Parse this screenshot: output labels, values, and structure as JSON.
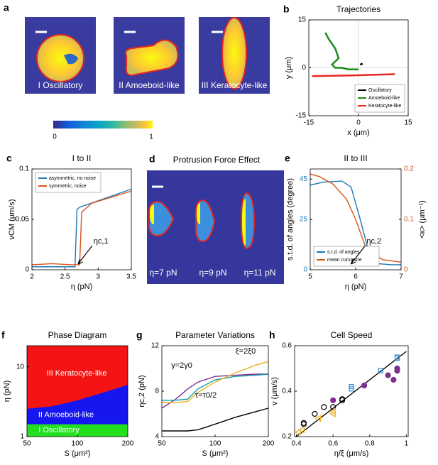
{
  "images": {
    "a": {
      "label": "a",
      "cells": [
        "I Oscillatory",
        "II Amoeboid-like",
        "III Keratocyte-like"
      ],
      "colorbar": [
        0,
        1
      ]
    },
    "d": {
      "label": "d",
      "title": "Protrusion Force Effect",
      "cells": [
        "η=7 pN",
        "η=9 pN",
        "η=11 pN"
      ]
    }
  },
  "chart_data": [
    {
      "label": "b",
      "type": "line",
      "title": "Trajectories",
      "xlabel": "x (μm)",
      "ylabel": "y (μm)",
      "xlim": [
        -15,
        15
      ],
      "ylim": [
        -15,
        15
      ],
      "xticks": [
        -15,
        0,
        15
      ],
      "yticks": [
        -15,
        0,
        15
      ],
      "grid": true,
      "legend": "lower right",
      "series": [
        {
          "name": "Oscillatory",
          "color": "#000000",
          "x": [
            0.5,
            1,
            1.2
          ],
          "values": [
            1,
            1.2,
            1
          ]
        },
        {
          "name": "Amoeboid-like",
          "color": "#1a8a1a",
          "x": [
            -10,
            -9,
            -7,
            -6,
            -8,
            -7,
            -5,
            -3,
            0
          ],
          "values": [
            11,
            9,
            6,
            3,
            1,
            0,
            0,
            -0.5,
            -0.5
          ]
        },
        {
          "name": "Keratocyte-like",
          "color": "#e8251f",
          "x": [
            -14,
            -8,
            -2,
            4,
            11
          ],
          "values": [
            -2.6,
            -2.5,
            -2.4,
            -2.2,
            -2
          ]
        }
      ]
    },
    {
      "label": "c",
      "type": "line",
      "title": "I to II",
      "xlabel": "η (pN)",
      "ylabel": "vCM (μm/s)",
      "xlim": [
        2,
        3.5
      ],
      "ylim": [
        0,
        0.1
      ],
      "xticks": [
        2,
        2.5,
        3,
        3.5
      ],
      "yticks": [
        0,
        0.05,
        0.1
      ],
      "legend": "upper left",
      "annotation": "ηc,1",
      "series": [
        {
          "name": "asymmetric, no noise",
          "color": "#1f77b4",
          "x": [
            2,
            2.5,
            2.65,
            2.68,
            2.72,
            3.5
          ],
          "values": [
            0.003,
            0.003,
            0.003,
            0.06,
            0.062,
            0.08
          ]
        },
        {
          "name": "symmetric, noise",
          "color": "#d95319",
          "x": [
            2,
            2.3,
            2.6,
            2.72,
            2.75,
            2.9,
            3.0,
            3.5
          ],
          "values": [
            0.005,
            0.006,
            0.005,
            0.005,
            0.057,
            0.066,
            0.068,
            0.078
          ]
        }
      ]
    },
    {
      "label": "e",
      "type": "line",
      "title": "II to III",
      "xlabel": "η (pN)",
      "ylabel": "s.t.d. of angles (degree)",
      "y2label": "<κ> (μm⁻¹)",
      "xlim": [
        5,
        7
      ],
      "ylim": [
        0,
        50
      ],
      "y2lim": [
        0,
        0.2
      ],
      "xticks": [
        5,
        6,
        7
      ],
      "yticks": [
        0,
        25,
        45
      ],
      "y2ticks": [
        0,
        0.1,
        0.2
      ],
      "legend": "lower left",
      "annotation": "ηc,2",
      "series": [
        {
          "name": "s.t.d. of angles",
          "color": "#1f77b4",
          "x": [
            5,
            5.3,
            5.7,
            5.9,
            6.1,
            6.3,
            6.5,
            6.8,
            7
          ],
          "values": [
            42,
            43.5,
            44,
            41,
            25,
            8,
            3,
            2.5,
            2.5
          ]
        },
        {
          "name": "mean curvature",
          "color": "#d95319",
          "axis": "y2",
          "x": [
            5,
            5.2,
            5.5,
            5.8,
            6.0,
            6.2,
            6.4,
            6.6,
            7
          ],
          "values": [
            0.19,
            0.185,
            0.17,
            0.14,
            0.1,
            0.05,
            0.03,
            0.02,
            0.015
          ]
        }
      ]
    },
    {
      "label": "f",
      "type": "phase",
      "title": "Phase Diagram",
      "xlabel": "S (μm²)",
      "ylabel": "η (pN)",
      "xlog": true,
      "ylog": true,
      "xlim": [
        50,
        200
      ],
      "ylim": [
        1,
        20
      ],
      "xticks": [
        50,
        100,
        200
      ],
      "yticks": [
        1,
        10
      ],
      "x": [
        50,
        70,
        100,
        140,
        200
      ],
      "regions": [
        {
          "name": "I Oscillatory",
          "color": "#22e01f"
        },
        {
          "name": "II Amoeboid-like",
          "color": "#1616f0"
        },
        {
          "name": "III Keratocyte-like",
          "color": "#f41414"
        }
      ],
      "boundaries": [
        {
          "values": [
            1.5,
            1.5,
            1.5,
            1.5,
            1.5
          ]
        },
        {
          "values": [
            2.5,
            2.7,
            3.3,
            4.2,
            5.5
          ]
        }
      ]
    },
    {
      "label": "g",
      "type": "line",
      "title": "Parameter Variations",
      "xlabel": "S (μm²)",
      "ylabel": "ηc,2 (pN)",
      "xlog": true,
      "xlim": [
        50,
        200
      ],
      "ylim": [
        4,
        12
      ],
      "xticks": [
        50,
        100,
        200
      ],
      "yticks": [
        4,
        8,
        12
      ],
      "x": [
        50,
        60,
        70,
        80,
        100,
        130,
        170,
        200
      ],
      "series": [
        {
          "color": "#000000",
          "values": [
            4.5,
            4.5,
            4.5,
            4.6,
            5.1,
            5.7,
            6.2,
            6.5
          ]
        },
        {
          "name": "γ=2γ0",
          "color": "#7e2f8e",
          "values": [
            6.5,
            7.3,
            8.2,
            8.8,
            9.3,
            9.4,
            9.5,
            9.5
          ]
        },
        {
          "name": "τ=τ0/2",
          "color": "#0e9aa7",
          "values": [
            7.2,
            7.2,
            7.3,
            8.2,
            9.0,
            9.3,
            9.4,
            9.5
          ]
        },
        {
          "name": "ξ=2ξ0",
          "color": "#edb120",
          "values": [
            7.0,
            7.0,
            7.1,
            7.9,
            8.8,
            9.6,
            10.3,
            10.6
          ]
        }
      ]
    },
    {
      "label": "h",
      "type": "scatter",
      "title": "Cell Speed",
      "xlabel": "η/ξ (μm/s)",
      "ylabel": "v (μm/s)",
      "xlim": [
        0.39,
        1.01
      ],
      "ylim": [
        0.2,
        0.6
      ],
      "xticks": [
        0.4,
        0.6,
        0.8,
        1
      ],
      "yticks": [
        0.2,
        0.4,
        0.6
      ],
      "series": [
        {
          "marker": "line",
          "color": "#000000",
          "x": [
            0.4,
            1
          ],
          "values": [
            0.2,
            0.575
          ]
        },
        {
          "marker": "circle-open",
          "color": "#000000",
          "x": [
            0.44,
            0.44,
            0.5,
            0.55,
            0.6,
            0.65,
            0.65
          ],
          "values": [
            0.255,
            0.26,
            0.3,
            0.33,
            0.33,
            0.36,
            0.365
          ]
        },
        {
          "marker": "triangle-open",
          "color": "#edb120",
          "x": [
            0.41,
            0.43,
            0.52,
            0.6,
            0.6
          ],
          "values": [
            0.22,
            0.23,
            0.28,
            0.3,
            0.31
          ]
        },
        {
          "marker": "dot",
          "color": "#7e2f8e",
          "x": [
            0.6,
            0.77,
            0.9,
            0.93,
            0.95,
            0.95
          ],
          "values": [
            0.36,
            0.425,
            0.47,
            0.45,
            0.49,
            0.5
          ]
        },
        {
          "marker": "square-open",
          "color": "#2a8fd6",
          "x": [
            0.7,
            0.7,
            0.86,
            0.95,
            0.95
          ],
          "values": [
            0.42,
            0.41,
            0.49,
            0.55,
            0.545
          ]
        }
      ]
    }
  ]
}
